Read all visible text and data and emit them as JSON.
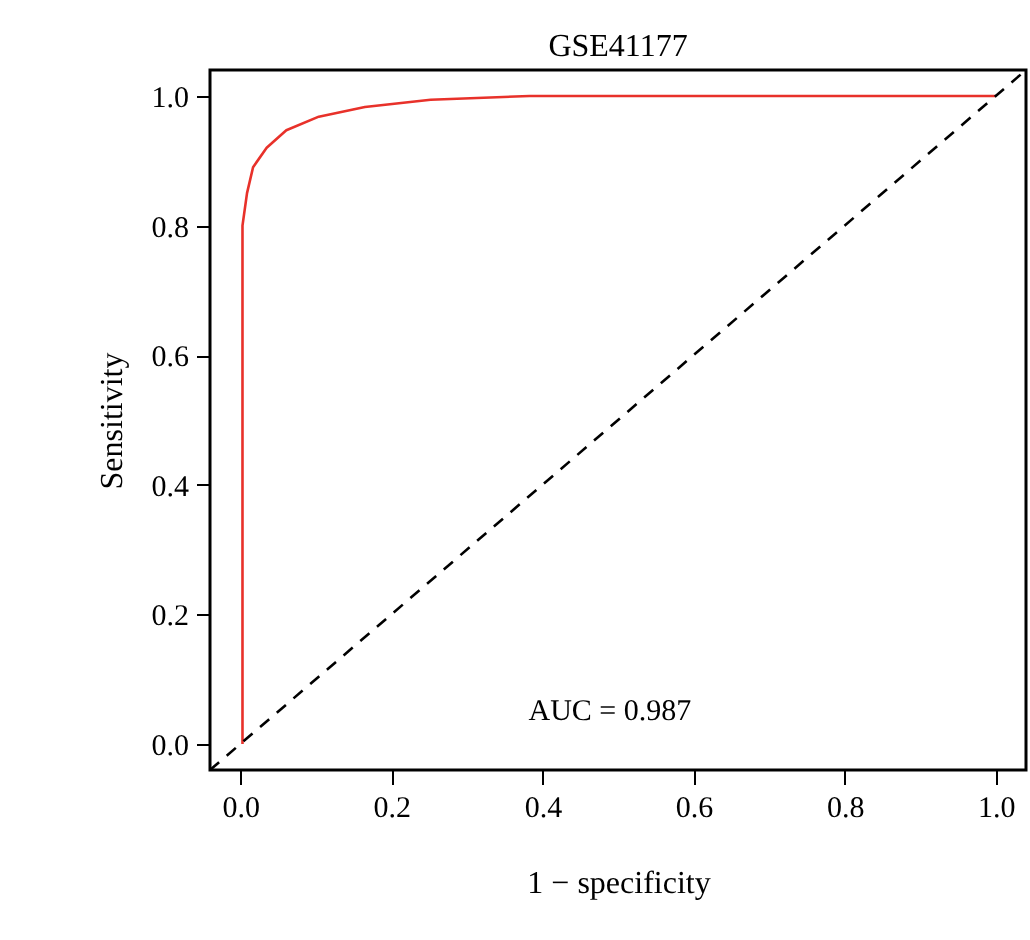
{
  "chart_data": {
    "type": "line",
    "title": "GSE41177",
    "xlabel": "1 − specificity",
    "ylabel": "Sensitivity",
    "xlim": [
      -0.04,
      1.04
    ],
    "ylim": [
      -0.04,
      1.04
    ],
    "xticks": [
      {
        "value": 0,
        "label": "0.0"
      },
      0.2,
      0.4,
      0.6,
      0.8,
      {
        "value": 1,
        "label": "1.0"
      }
    ],
    "yticks": [
      {
        "value": 0,
        "label": "0.0"
      },
      0.2,
      0.4,
      0.6,
      0.8,
      {
        "value": 1,
        "label": "1.0"
      }
    ],
    "grid": false,
    "marker": "none",
    "series": [
      {
        "color": "#e8312a",
        "line_style": "solid",
        "x": [
          0.003,
          0.003,
          0.009,
          0.017,
          0.035,
          0.061,
          0.104,
          0.165,
          0.252,
          0.383,
          0.6,
          0.8,
          1.0
        ],
        "values": [
          0,
          0.8,
          0.85,
          0.89,
          0.92,
          0.947,
          0.968,
          0.983,
          0.994,
          1.0,
          1.0,
          1.0,
          1.0
        ]
      },
      {
        "color": "#000000",
        "line_style": "dashed",
        "x": [
          -0.04,
          1.04
        ],
        "values": [
          -0.04,
          1.04
        ]
      }
    ],
    "annotations": [
      "AUC = 0.987"
    ]
  }
}
